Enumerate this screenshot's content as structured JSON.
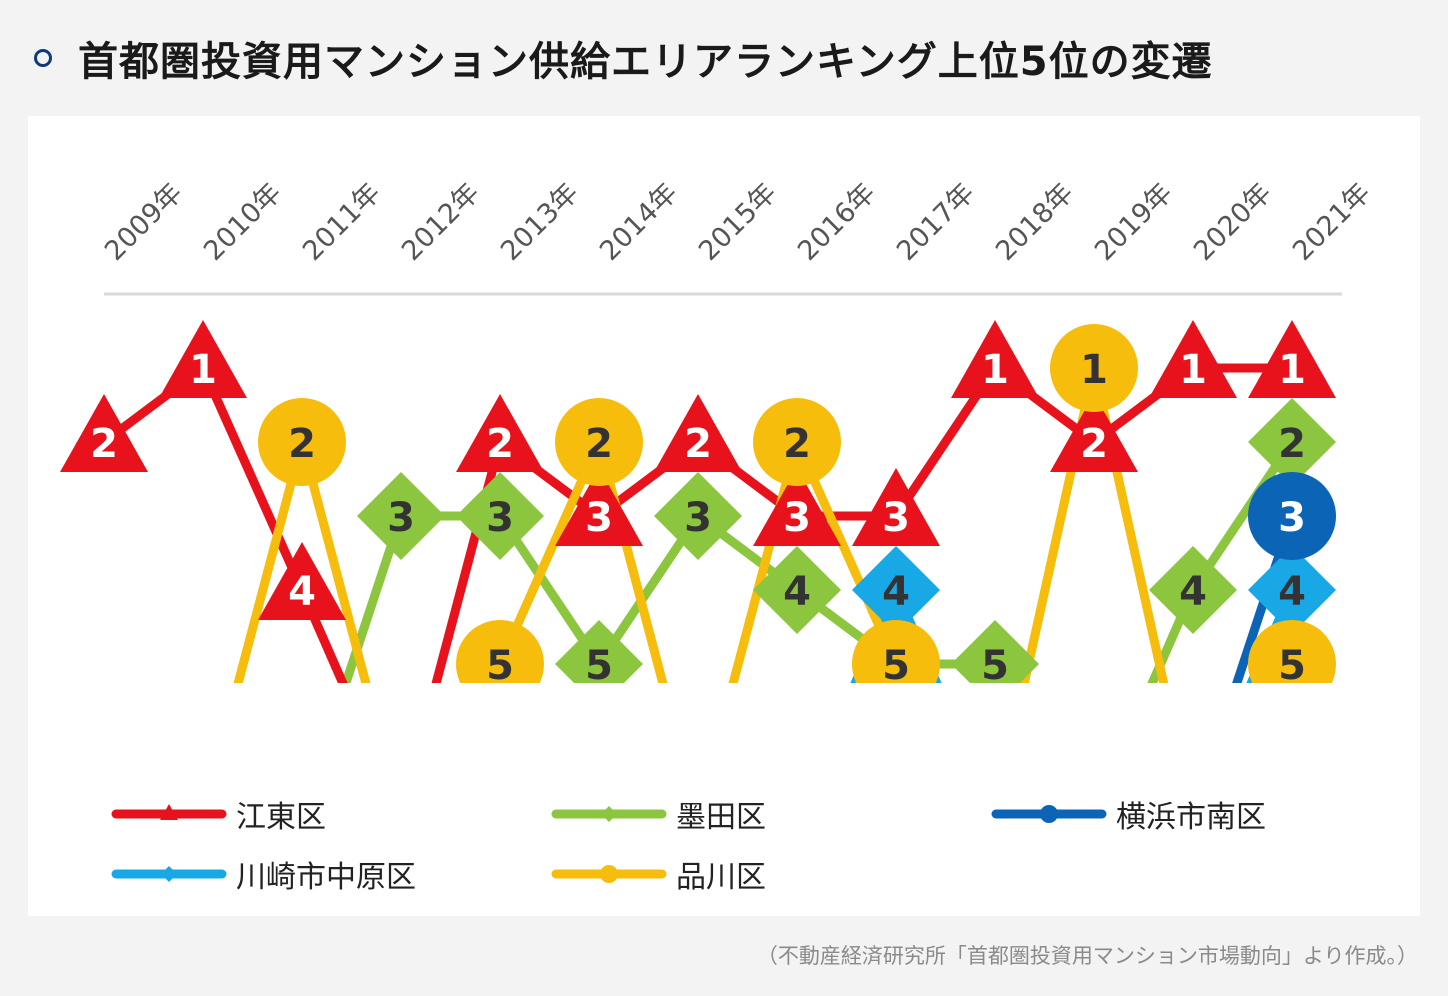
{
  "title": "首都圏投資用マンション供給エリアランキング上位5位の変遷",
  "source_note": "（不動産経済研究所「首都圏投資用マンション市場動向」より作成。）",
  "colors": {
    "koto": "#e8121c",
    "sumida": "#8cc63f",
    "yokohama": "#0b64b5",
    "kawasaki": "#19a8e6",
    "shinagawa": "#f7bd0c",
    "grid": "#d8d8d8",
    "axis_text": "#555555"
  },
  "legend": [
    {
      "name": "江東区",
      "series": "koto"
    },
    {
      "name": "墨田区",
      "series": "sumida"
    },
    {
      "name": "横浜市南区",
      "series": "yokohama"
    },
    {
      "name": "川崎市中原区",
      "series": "kawasaki"
    },
    {
      "name": "品川区",
      "series": "shinagawa"
    }
  ],
  "chart_data": {
    "type": "line",
    "title": "首都圏投資用マンション供給エリアランキング上位5位の変遷",
    "x": [
      "2009年",
      "2010年",
      "2011年",
      "2012年",
      "2013年",
      "2014年",
      "2015年",
      "2016年",
      "2017年",
      "2018年",
      "2019年",
      "2020年",
      "2021年"
    ],
    "y_axis": "rank (1 at top, 5 at bottom, null = outside top 5)",
    "ylim": [
      1,
      5
    ],
    "series": [
      {
        "key": "koto",
        "name": "江東区",
        "marker": "triangle",
        "values": [
          2,
          1,
          4,
          null,
          2,
          3,
          2,
          3,
          3,
          1,
          2,
          1,
          1
        ]
      },
      {
        "key": "sumida",
        "name": "墨田区",
        "marker": "diamond",
        "values": [
          null,
          null,
          null,
          3,
          3,
          5,
          3,
          4,
          5,
          5,
          null,
          4,
          2
        ]
      },
      {
        "key": "yokohama",
        "name": "横浜市南区",
        "marker": "circle",
        "values": [
          null,
          null,
          null,
          null,
          null,
          null,
          null,
          null,
          null,
          null,
          null,
          null,
          3
        ]
      },
      {
        "key": "kawasaki",
        "name": "川崎市中原区",
        "marker": "diamond",
        "values": [
          null,
          null,
          null,
          null,
          null,
          null,
          null,
          null,
          4,
          null,
          null,
          null,
          4
        ]
      },
      {
        "key": "shinagawa",
        "name": "品川区",
        "marker": "circle",
        "values": [
          null,
          null,
          2,
          null,
          5,
          2,
          null,
          2,
          5,
          null,
          1,
          null,
          5
        ]
      }
    ],
    "legend_position": "bottom",
    "grid": false
  }
}
